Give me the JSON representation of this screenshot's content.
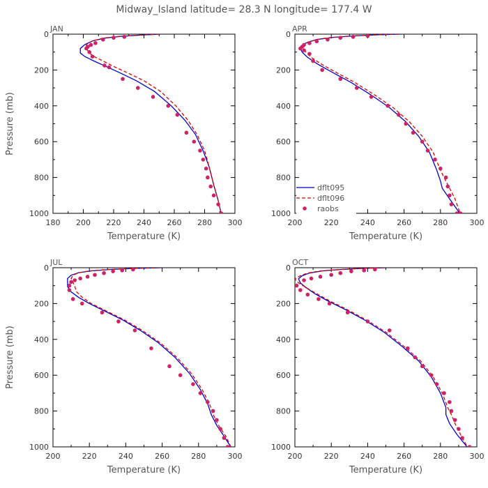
{
  "figure": {
    "title": "Midway_Island   latitude= 28.3 N longitude= 177.4 W"
  },
  "legend": {
    "entries": [
      {
        "label": "dflt095",
        "color": "#0000cc",
        "style": "solid"
      },
      {
        "label": "dflt096",
        "color": "#dd0000",
        "style": "dashed"
      },
      {
        "label": "raobs",
        "color": "#cc2266",
        "style": "dot"
      }
    ]
  },
  "chart_data": [
    {
      "type": "line",
      "panel": "JAN",
      "xlabel": "Temperature (K)",
      "ylabel": "Pressure (mb)",
      "xlim": [
        180,
        300
      ],
      "ylim": [
        1000,
        0
      ],
      "x_ticks": [
        180,
        200,
        220,
        240,
        260,
        280,
        300
      ],
      "y_ticks": [
        0,
        200,
        400,
        600,
        800,
        1000
      ],
      "series": [
        {
          "name": "dflt095",
          "x": [
            251,
            238,
            225,
            214,
            206,
            201,
            198,
            198,
            201,
            207,
            215,
            224,
            235,
            247,
            258,
            267,
            274,
            279,
            283,
            286,
            289,
            291
          ],
          "y": [
            0,
            5,
            12,
            22,
            38,
            58,
            80,
            105,
            125,
            150,
            180,
            215,
            260,
            320,
            400,
            480,
            560,
            650,
            740,
            840,
            930,
            1005
          ]
        },
        {
          "name": "dflt096",
          "x": [
            250,
            237,
            224,
            213,
            206,
            202,
            202,
            204,
            207,
            213,
            220,
            229,
            240,
            251,
            261,
            269,
            275,
            280,
            283,
            286,
            289,
            291
          ],
          "y": [
            0,
            5,
            12,
            22,
            38,
            58,
            80,
            105,
            125,
            150,
            180,
            215,
            260,
            320,
            400,
            480,
            560,
            650,
            740,
            840,
            930,
            1005
          ]
        },
        {
          "name": "raobs",
          "x": [
            227,
            220,
            213,
            208,
            205,
            203,
            202,
            204,
            206,
            214,
            217,
            226,
            236,
            246,
            256,
            262,
            268,
            273,
            277,
            279,
            281,
            282,
            284,
            286,
            289,
            291
          ],
          "y": [
            15,
            20,
            30,
            50,
            60,
            70,
            80,
            100,
            125,
            175,
            185,
            250,
            300,
            350,
            400,
            450,
            550,
            600,
            650,
            700,
            750,
            800,
            850,
            900,
            950,
            1000
          ]
        }
      ]
    },
    {
      "type": "line",
      "panel": "APR",
      "xlabel": "Temperature (K)",
      "ylabel": "",
      "xlim": [
        200,
        300
      ],
      "ylim": [
        1000,
        0
      ],
      "x_ticks": [
        200,
        220,
        240,
        260,
        280,
        300
      ],
      "y_ticks": [
        0,
        200,
        400,
        600,
        800,
        1000
      ],
      "series": [
        {
          "name": "dflt095",
          "x": [
            258,
            245,
            232,
            221,
            212,
            207,
            204,
            203,
            204,
            207,
            213,
            221,
            231,
            242,
            252,
            261,
            268,
            274,
            278,
            280,
            281,
            285,
            291
          ],
          "y": [
            0,
            4,
            10,
            18,
            30,
            45,
            62,
            80,
            100,
            130,
            170,
            215,
            270,
            340,
            410,
            490,
            570,
            660,
            760,
            820,
            860,
            920,
            1005
          ]
        },
        {
          "name": "dflt096",
          "x": [
            257,
            244,
            231,
            220,
            212,
            207,
            205,
            205,
            206,
            209,
            215,
            223,
            233,
            244,
            254,
            263,
            270,
            276,
            280,
            283,
            285,
            288,
            291
          ],
          "y": [
            0,
            4,
            10,
            18,
            30,
            45,
            62,
            80,
            100,
            130,
            170,
            215,
            270,
            340,
            410,
            490,
            570,
            660,
            760,
            820,
            860,
            920,
            1005
          ]
        },
        {
          "name": "raobs",
          "x": [
            240,
            232,
            225,
            218,
            212,
            208,
            205,
            204,
            203,
            205,
            208,
            210,
            215,
            225,
            234,
            242,
            251,
            257,
            261,
            265,
            270,
            273,
            277,
            280,
            283,
            284,
            285,
            286,
            289,
            291
          ],
          "y": [
            10,
            15,
            20,
            30,
            40,
            50,
            60,
            70,
            80,
            90,
            110,
            150,
            200,
            250,
            300,
            350,
            400,
            450,
            500,
            550,
            600,
            650,
            700,
            750,
            800,
            850,
            900,
            950,
            1000,
            1000
          ]
        }
      ]
    },
    {
      "type": "line",
      "panel": "JUL",
      "xlabel": "Temperature (K)",
      "ylabel": "Pressure (mb)",
      "xlim": [
        200,
        300
      ],
      "ylim": [
        1000,
        0
      ],
      "x_ticks": [
        200,
        220,
        240,
        260,
        280,
        300
      ],
      "y_ticks": [
        0,
        200,
        400,
        600,
        800,
        1000
      ],
      "series": [
        {
          "name": "dflt095",
          "x": [
            260,
            245,
            231,
            221,
            214,
            210,
            208,
            208,
            208,
            210,
            214,
            220,
            228,
            238,
            248,
            258,
            267,
            275,
            281,
            285,
            287,
            290,
            294,
            298
          ],
          "y": [
            0,
            4,
            10,
            18,
            28,
            42,
            60,
            80,
            105,
            135,
            165,
            200,
            240,
            290,
            350,
            420,
            500,
            590,
            680,
            760,
            820,
            880,
            940,
            1005
          ]
        },
        {
          "name": "dflt096",
          "x": [
            259,
            244,
            230,
            220,
            214,
            211,
            210,
            211,
            212,
            213,
            216,
            221,
            229,
            239,
            249,
            259,
            268,
            276,
            282,
            286,
            288,
            291,
            295,
            298
          ],
          "y": [
            0,
            4,
            10,
            18,
            28,
            42,
            60,
            80,
            105,
            135,
            165,
            200,
            240,
            290,
            350,
            420,
            500,
            590,
            680,
            760,
            820,
            880,
            940,
            1005
          ]
        },
        {
          "name": "raobs",
          "x": [
            244,
            238,
            233,
            228,
            223,
            219,
            215,
            212,
            210,
            209,
            209,
            211,
            216,
            227,
            236,
            245,
            254,
            264,
            270,
            277,
            281,
            285,
            288,
            290,
            292,
            294,
            296
          ],
          "y": [
            10,
            15,
            20,
            30,
            40,
            50,
            60,
            70,
            80,
            100,
            125,
            175,
            200,
            250,
            300,
            350,
            450,
            550,
            600,
            650,
            700,
            750,
            800,
            850,
            900,
            950,
            1000
          ]
        }
      ]
    },
    {
      "type": "line",
      "panel": "OCT",
      "xlabel": "Temperature (K)",
      "ylabel": "",
      "xlim": [
        200,
        300
      ],
      "ylim": [
        1000,
        0
      ],
      "x_ticks": [
        200,
        220,
        240,
        260,
        280,
        300
      ],
      "y_ticks": [
        0,
        200,
        400,
        600,
        800,
        1000
      ],
      "series": [
        {
          "name": "dflt095",
          "x": [
            250,
            237,
            225,
            215,
            208,
            204,
            202,
            203,
            206,
            211,
            218,
            227,
            238,
            249,
            259,
            268,
            275,
            280,
            283,
            283,
            285,
            289,
            295
          ],
          "y": [
            0,
            4,
            10,
            18,
            30,
            45,
            62,
            85,
            110,
            145,
            185,
            230,
            290,
            360,
            440,
            520,
            610,
            700,
            780,
            820,
            870,
            930,
            1005
          ]
        },
        {
          "name": "dflt096",
          "x": [
            249,
            236,
            224,
            214,
            207,
            203,
            200,
            202,
            206,
            212,
            219,
            228,
            239,
            250,
            260,
            269,
            276,
            281,
            284,
            286,
            288,
            291,
            295
          ],
          "y": [
            0,
            4,
            10,
            18,
            30,
            45,
            62,
            85,
            110,
            145,
            185,
            230,
            290,
            360,
            440,
            520,
            610,
            700,
            780,
            820,
            870,
            930,
            1005
          ]
        },
        {
          "name": "raobs",
          "x": [
            244,
            238,
            231,
            225,
            220,
            214,
            209,
            205,
            201,
            203,
            207,
            213,
            219,
            229,
            240,
            252,
            262,
            266,
            270,
            275,
            278,
            282,
            285,
            286,
            288,
            290,
            292,
            296
          ],
          "y": [
            10,
            15,
            20,
            30,
            40,
            50,
            60,
            70,
            100,
            125,
            150,
            175,
            200,
            250,
            300,
            350,
            450,
            500,
            550,
            600,
            650,
            700,
            750,
            800,
            850,
            900,
            950,
            1000
          ]
        }
      ]
    }
  ]
}
